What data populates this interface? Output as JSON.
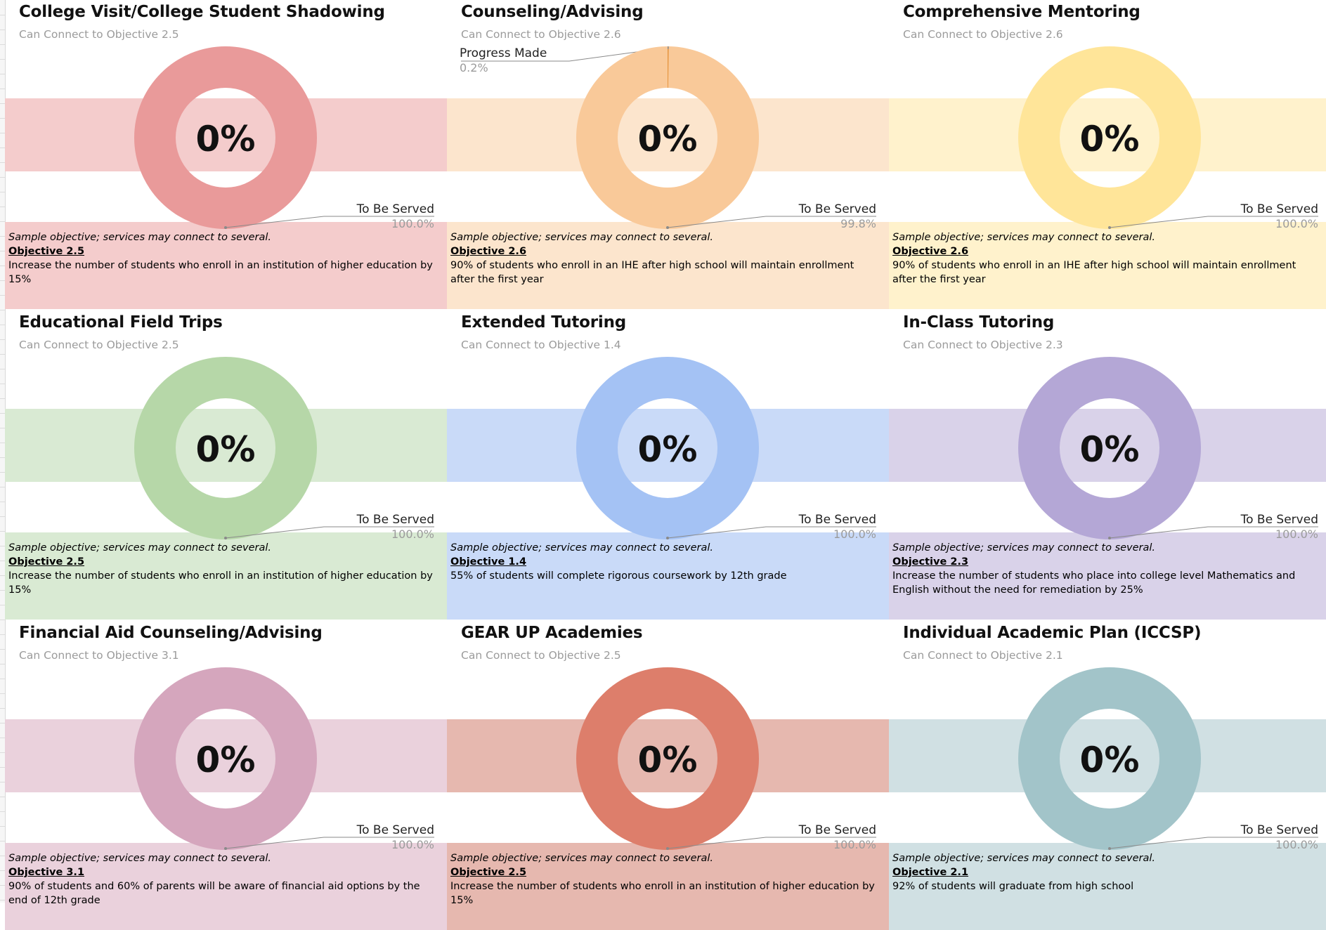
{
  "note_text": "Sample objective; services may connect to several.",
  "colors": {
    "text_dark": "#111111",
    "label_grey": "#9b9b9b",
    "leader_line": "#8a8a8a"
  },
  "tiles": [
    {
      "title": "College Visit/College Student Shadowing",
      "subtitle": "Can Connect to Objective 2.5",
      "objective_label": "Objective 2.5",
      "objective_text": "Increase the number of students who enroll in an institution of higher education by 15%",
      "ring": "#e99a9a",
      "band": "#f4cccc",
      "center_value": "0%"
    },
    {
      "title": "Counseling/Advising",
      "subtitle": "Can Connect to Objective 2.6",
      "objective_label": "Objective 2.6",
      "objective_text": "90% of students who enroll in an IHE after high school will maintain enrollment after the first year",
      "ring": "#f9c999",
      "band": "#fce5cd",
      "center_value": "0%"
    },
    {
      "title": "Comprehensive Mentoring",
      "subtitle": "Can Connect to Objective 2.6",
      "objective_label": "Objective 2.6",
      "objective_text": "90% of students who enroll in an IHE after high school will maintain enrollment after the first year",
      "ring": "#ffe599",
      "band": "#fff2cc",
      "center_value": "0%"
    },
    {
      "title": "Educational Field Trips",
      "subtitle": "Can Connect to Objective 2.5",
      "objective_label": "Objective 2.5",
      "objective_text": "Increase the number of students who enroll in an institution of higher education by 15%",
      "ring": "#b6d7a8",
      "band": "#d9ead3",
      "center_value": "0%"
    },
    {
      "title": "Extended Tutoring",
      "subtitle": "Can Connect to Objective 1.4",
      "objective_label": "Objective 1.4",
      "objective_text": "55% of students will complete rigorous coursework by 12th grade",
      "ring": "#a4c2f4",
      "band": "#c9daf8",
      "center_value": "0%"
    },
    {
      "title": "In-Class Tutoring",
      "subtitle": "Can Connect to Objective 2.3",
      "objective_label": "Objective 2.3",
      "objective_text": "Increase the number of students who place into college level Mathematics and English without the need for remediation by 25%",
      "ring": "#b4a7d6",
      "band": "#d9d2e9",
      "center_value": "0%"
    },
    {
      "title": "Financial Aid Counseling/Advising",
      "subtitle": "Can Connect to Objective 3.1",
      "objective_label": "Objective 3.1",
      "objective_text": "90% of students and 60% of parents will be aware of financial aid options by the end of 12th grade",
      "ring": "#d5a6bd",
      "band": "#ead1dc",
      "center_value": "0%"
    },
    {
      "title": "GEAR UP Academies",
      "subtitle": "Can Connect to Objective 2.5",
      "objective_label": "Objective 2.5",
      "objective_text": "Increase the number of students who enroll in an institution of higher education by 15%",
      "ring": "#dd7e6b",
      "band": "#e6b8af",
      "center_value": "0%"
    },
    {
      "title": "Individual Academic Plan (ICCSP)",
      "subtitle": "Can Connect to Objective 2.1",
      "objective_label": "Objective 2.1",
      "objective_text": "92% of students will graduate from high school",
      "ring": "#a2c4c9",
      "band": "#d0e0e3",
      "center_value": "0%"
    }
  ],
  "chart_data": [
    {
      "type": "pie",
      "title": "College Visit/College Student Shadowing",
      "subtitle": "Can Connect to Objective 2.5",
      "series": [
        {
          "label": "To Be Served",
          "value": 100.0,
          "value_label": "100.0%"
        }
      ]
    },
    {
      "type": "pie",
      "title": "Counseling/Advising",
      "subtitle": "Can Connect to Objective 2.6",
      "series": [
        {
          "label": "Progress Made",
          "value": 0.2,
          "value_label": "0.2%"
        },
        {
          "label": "To Be Served",
          "value": 99.8,
          "value_label": "99.8%"
        }
      ]
    },
    {
      "type": "pie",
      "title": "Comprehensive Mentoring",
      "subtitle": "Can Connect to Objective 2.6",
      "series": [
        {
          "label": "To Be Served",
          "value": 100.0,
          "value_label": "100.0%"
        }
      ]
    },
    {
      "type": "pie",
      "title": "Educational Field Trips",
      "subtitle": "Can Connect to Objective 2.5",
      "series": [
        {
          "label": "To Be Served",
          "value": 100.0,
          "value_label": "100.0%"
        }
      ]
    },
    {
      "type": "pie",
      "title": "Extended Tutoring",
      "subtitle": "Can Connect to Objective 1.4",
      "series": [
        {
          "label": "To Be Served",
          "value": 100.0,
          "value_label": "100.0%"
        }
      ]
    },
    {
      "type": "pie",
      "title": "In-Class Tutoring",
      "subtitle": "Can Connect to Objective 2.3",
      "series": [
        {
          "label": "To Be Served",
          "value": 100.0,
          "value_label": "100.0%"
        }
      ]
    },
    {
      "type": "pie",
      "title": "Financial Aid Counseling/Advising",
      "subtitle": "Can Connect to Objective 3.1",
      "series": [
        {
          "label": "To Be Served",
          "value": 100.0,
          "value_label": "100.0%"
        }
      ]
    },
    {
      "type": "pie",
      "title": "GEAR UP Academies",
      "subtitle": "Can Connect to Objective 2.5",
      "series": [
        {
          "label": "To Be Served",
          "value": 100.0,
          "value_label": "100.0%"
        }
      ]
    },
    {
      "type": "pie",
      "title": "Individual Academic Plan (ICCSP)",
      "subtitle": "Can Connect to Objective 2.1",
      "series": [
        {
          "label": "To Be Served",
          "value": 100.0,
          "value_label": "100.0%"
        }
      ]
    }
  ]
}
